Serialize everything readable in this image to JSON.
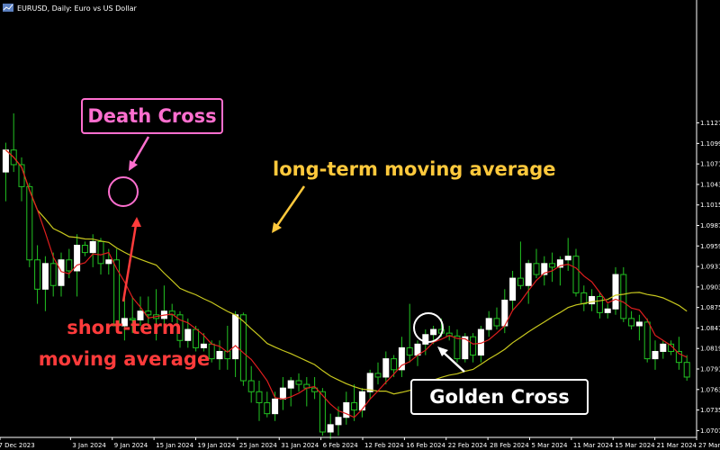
{
  "window": {
    "title": "EURUSD, Daily: Euro vs US Dollar",
    "bg_color": "#000000",
    "axis_color": "#ffffff"
  },
  "colors": {
    "bull_body": "#ffffff",
    "bull_wick": "#22c322",
    "bear_body": "#000000",
    "bear_border": "#22c322",
    "short_ma": "#e01e1e",
    "long_ma": "#c8c81e",
    "death_cross": "#ff6fcf",
    "long_ma_label": "#ffc93c",
    "short_ma_label": "#ff3b3b",
    "golden_cross": "#ffffff"
  },
  "annotations": {
    "death_cross": "Death Cross",
    "golden_cross": "Golden Cross",
    "long_ma": "long-term moving average",
    "short_ma_line1": "short-term",
    "short_ma_line2": "moving average"
  },
  "chart_data": {
    "type": "candlestick",
    "symbol": "EURUSD",
    "timeframe": "Daily",
    "ylim": [
      1.0705,
      1.1285
    ],
    "y_ticks": [
      "1.11270",
      "1.10990",
      "1.10710",
      "1.10430",
      "1.10150",
      "1.09870",
      "1.09590",
      "1.09310",
      "1.09030",
      "1.08750",
      "1.08470",
      "1.08190",
      "1.07910",
      "1.07630",
      "1.07350",
      "1.07070"
    ],
    "x_ticks": [
      "27 Dec 2023",
      "3 Jan 2024",
      "9 Jan 2024",
      "15 Jan 2024",
      "19 Jan 2024",
      "25 Jan 2024",
      "31 Jan 2024",
      "6 Feb 2024",
      "12 Feb 2024",
      "16 Feb 2024",
      "22 Feb 2024",
      "28 Feb 2024",
      "5 Mar 2024",
      "11 Mar 2024",
      "15 Mar 2024",
      "21 Mar 2024",
      "27 Mar 2024"
    ],
    "candles": [
      {
        "o": 1.106,
        "h": 1.11,
        "l": 1.102,
        "c": 1.109
      },
      {
        "o": 1.109,
        "h": 1.114,
        "l": 1.106,
        "c": 1.107
      },
      {
        "o": 1.107,
        "h": 1.108,
        "l": 1.102,
        "c": 1.104
      },
      {
        "o": 1.104,
        "h": 1.1045,
        "l": 1.093,
        "c": 1.094
      },
      {
        "o": 1.094,
        "h": 1.096,
        "l": 1.088,
        "c": 1.09
      },
      {
        "o": 1.09,
        "h": 1.0945,
        "l": 1.087,
        "c": 1.0935
      },
      {
        "o": 1.0935,
        "h": 1.095,
        "l": 1.089,
        "c": 1.0905
      },
      {
        "o": 1.0905,
        "h": 1.095,
        "l": 1.089,
        "c": 1.094
      },
      {
        "o": 1.094,
        "h": 1.0955,
        "l": 1.0915,
        "c": 1.0925
      },
      {
        "o": 1.0925,
        "h": 1.0975,
        "l": 1.089,
        "c": 1.096
      },
      {
        "o": 1.096,
        "h": 1.0965,
        "l": 1.0945,
        "c": 1.095
      },
      {
        "o": 1.095,
        "h": 1.0975,
        "l": 1.093,
        "c": 1.0965
      },
      {
        "o": 1.0965,
        "h": 1.097,
        "l": 1.092,
        "c": 1.0935
      },
      {
        "o": 1.0935,
        "h": 1.0955,
        "l": 1.092,
        "c": 1.094
      },
      {
        "o": 1.094,
        "h": 1.0955,
        "l": 1.0845,
        "c": 1.085
      },
      {
        "o": 1.085,
        "h": 1.089,
        "l": 1.083,
        "c": 1.086
      },
      {
        "o": 1.086,
        "h": 1.089,
        "l": 1.084,
        "c": 1.0858
      },
      {
        "o": 1.0858,
        "h": 1.089,
        "l": 1.085,
        "c": 1.087
      },
      {
        "o": 1.087,
        "h": 1.089,
        "l": 1.085,
        "c": 1.0865
      },
      {
        "o": 1.0865,
        "h": 1.09,
        "l": 1.083,
        "c": 1.086
      },
      {
        "o": 1.086,
        "h": 1.0905,
        "l": 1.084,
        "c": 1.087
      },
      {
        "o": 1.087,
        "h": 1.088,
        "l": 1.0855,
        "c": 1.0865
      },
      {
        "o": 1.0865,
        "h": 1.087,
        "l": 1.082,
        "c": 1.083
      },
      {
        "o": 1.083,
        "h": 1.086,
        "l": 1.082,
        "c": 1.0845
      },
      {
        "o": 1.0845,
        "h": 1.085,
        "l": 1.0815,
        "c": 1.082
      },
      {
        "o": 1.082,
        "h": 1.084,
        "l": 1.0815,
        "c": 1.0825
      },
      {
        "o": 1.0825,
        "h": 1.083,
        "l": 1.08,
        "c": 1.0805
      },
      {
        "o": 1.0805,
        "h": 1.083,
        "l": 1.079,
        "c": 1.0815
      },
      {
        "o": 1.0815,
        "h": 1.085,
        "l": 1.079,
        "c": 1.0805
      },
      {
        "o": 1.0805,
        "h": 1.087,
        "l": 1.078,
        "c": 1.0865
      },
      {
        "o": 1.0865,
        "h": 1.0868,
        "l": 1.0768,
        "c": 1.0775
      },
      {
        "o": 1.0775,
        "h": 1.0795,
        "l": 1.0745,
        "c": 1.076
      },
      {
        "o": 1.076,
        "h": 1.0775,
        "l": 1.072,
        "c": 1.0745
      },
      {
        "o": 1.0745,
        "h": 1.076,
        "l": 1.0725,
        "c": 1.073
      },
      {
        "o": 1.073,
        "h": 1.076,
        "l": 1.072,
        "c": 1.075
      },
      {
        "o": 1.075,
        "h": 1.078,
        "l": 1.0735,
        "c": 1.0765
      },
      {
        "o": 1.0765,
        "h": 1.078,
        "l": 1.074,
        "c": 1.0775
      },
      {
        "o": 1.0775,
        "h": 1.0785,
        "l": 1.076,
        "c": 1.077
      },
      {
        "o": 1.077,
        "h": 1.078,
        "l": 1.074,
        "c": 1.0765
      },
      {
        "o": 1.0765,
        "h": 1.078,
        "l": 1.075,
        "c": 1.076
      },
      {
        "o": 1.076,
        "h": 1.0765,
        "l": 1.07,
        "c": 1.0705
      },
      {
        "o": 1.0705,
        "h": 1.073,
        "l": 1.0695,
        "c": 1.0715
      },
      {
        "o": 1.0715,
        "h": 1.074,
        "l": 1.07,
        "c": 1.0725
      },
      {
        "o": 1.0725,
        "h": 1.076,
        "l": 1.0715,
        "c": 1.0745
      },
      {
        "o": 1.0745,
        "h": 1.077,
        "l": 1.072,
        "c": 1.0735
      },
      {
        "o": 1.0735,
        "h": 1.0765,
        "l": 1.0725,
        "c": 1.076
      },
      {
        "o": 1.076,
        "h": 1.079,
        "l": 1.075,
        "c": 1.0785
      },
      {
        "o": 1.0785,
        "h": 1.08,
        "l": 1.077,
        "c": 1.078
      },
      {
        "o": 1.078,
        "h": 1.0815,
        "l": 1.077,
        "c": 1.0805
      },
      {
        "o": 1.0805,
        "h": 1.081,
        "l": 1.078,
        "c": 1.079
      },
      {
        "o": 1.079,
        "h": 1.0835,
        "l": 1.078,
        "c": 1.082
      },
      {
        "o": 1.082,
        "h": 1.088,
        "l": 1.08,
        "c": 1.081
      },
      {
        "o": 1.081,
        "h": 1.083,
        "l": 1.0795,
        "c": 1.0825
      },
      {
        "o": 1.0825,
        "h": 1.0845,
        "l": 1.081,
        "c": 1.0838
      },
      {
        "o": 1.0838,
        "h": 1.085,
        "l": 1.0825,
        "c": 1.0845
      },
      {
        "o": 1.0845,
        "h": 1.086,
        "l": 1.0835,
        "c": 1.084
      },
      {
        "o": 1.084,
        "h": 1.085,
        "l": 1.083,
        "c": 1.0836
      },
      {
        "o": 1.0836,
        "h": 1.0845,
        "l": 1.08,
        "c": 1.0805
      },
      {
        "o": 1.0805,
        "h": 1.084,
        "l": 1.08,
        "c": 1.0835
      },
      {
        "o": 1.0835,
        "h": 1.084,
        "l": 1.08,
        "c": 1.081
      },
      {
        "o": 1.081,
        "h": 1.085,
        "l": 1.08,
        "c": 1.0845
      },
      {
        "o": 1.0845,
        "h": 1.087,
        "l": 1.0835,
        "c": 1.086
      },
      {
        "o": 1.086,
        "h": 1.0875,
        "l": 1.0845,
        "c": 1.085
      },
      {
        "o": 1.085,
        "h": 1.09,
        "l": 1.084,
        "c": 1.0885
      },
      {
        "o": 1.0885,
        "h": 1.0925,
        "l": 1.087,
        "c": 1.0915
      },
      {
        "o": 1.0915,
        "h": 1.0965,
        "l": 1.09,
        "c": 1.0905
      },
      {
        "o": 1.0905,
        "h": 1.094,
        "l": 1.088,
        "c": 1.0935
      },
      {
        "o": 1.0935,
        "h": 1.0955,
        "l": 1.0915,
        "c": 1.092
      },
      {
        "o": 1.092,
        "h": 1.0945,
        "l": 1.0905,
        "c": 1.0935
      },
      {
        "o": 1.0935,
        "h": 1.095,
        "l": 1.091,
        "c": 1.093
      },
      {
        "o": 1.093,
        "h": 1.0945,
        "l": 1.0905,
        "c": 1.094
      },
      {
        "o": 1.094,
        "h": 1.097,
        "l": 1.0925,
        "c": 1.0945
      },
      {
        "o": 1.0945,
        "h": 1.0955,
        "l": 1.089,
        "c": 1.0895
      },
      {
        "o": 1.0895,
        "h": 1.0905,
        "l": 1.087,
        "c": 1.088
      },
      {
        "o": 1.088,
        "h": 1.09,
        "l": 1.087,
        "c": 1.089
      },
      {
        "o": 1.089,
        "h": 1.0895,
        "l": 1.086,
        "c": 1.0868
      },
      {
        "o": 1.0868,
        "h": 1.088,
        "l": 1.086,
        "c": 1.0873
      },
      {
        "o": 1.0873,
        "h": 1.093,
        "l": 1.0865,
        "c": 1.092
      },
      {
        "o": 1.092,
        "h": 1.093,
        "l": 1.0855,
        "c": 1.086
      },
      {
        "o": 1.086,
        "h": 1.087,
        "l": 1.0845,
        "c": 1.085
      },
      {
        "o": 1.085,
        "h": 1.0865,
        "l": 1.083,
        "c": 1.0855
      },
      {
        "o": 1.0855,
        "h": 1.086,
        "l": 1.08,
        "c": 1.0805
      },
      {
        "o": 1.0805,
        "h": 1.083,
        "l": 1.079,
        "c": 1.0815
      },
      {
        "o": 1.0815,
        "h": 1.083,
        "l": 1.0805,
        "c": 1.0825
      },
      {
        "o": 1.0825,
        "h": 1.083,
        "l": 1.081,
        "c": 1.0815
      },
      {
        "o": 1.0815,
        "h": 1.0835,
        "l": 1.079,
        "c": 1.08
      },
      {
        "o": 1.08,
        "h": 1.081,
        "l": 1.0775,
        "c": 1.078
      }
    ],
    "series": [
      {
        "name": "short-term moving average",
        "period": 5
      },
      {
        "name": "long-term moving average",
        "period": 20
      }
    ]
  }
}
